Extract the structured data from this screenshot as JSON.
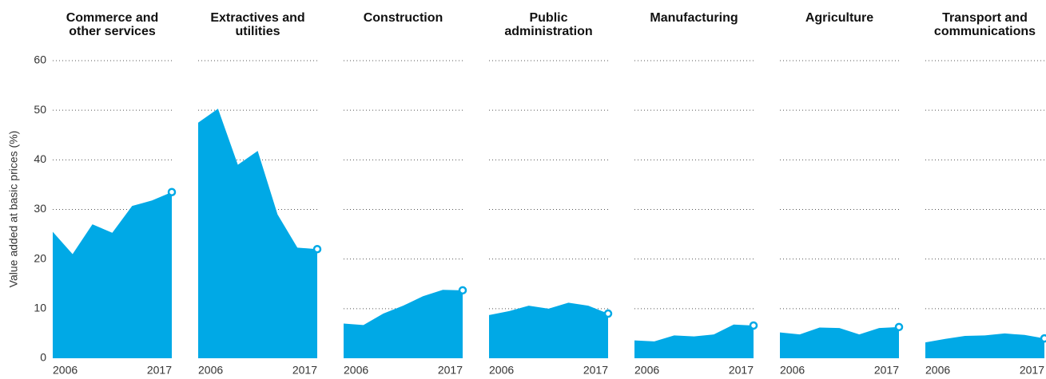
{
  "chart_data": {
    "type": "area",
    "ylabel": "Value added at basic prices (%)",
    "categories": [
      "2006",
      null,
      null,
      null,
      null,
      null,
      "2017"
    ],
    "ylim": [
      0,
      60
    ],
    "yticks": [
      0,
      10,
      20,
      30,
      40,
      50,
      60
    ],
    "grid": true,
    "series": [
      {
        "name": "Commerce and other services",
        "color": "#00a9e6",
        "values": [
          25.5,
          21,
          27,
          25.3,
          30.7,
          31.8,
          33.5
        ]
      },
      {
        "name": "Extractives and utilities",
        "color": "#00a9e6",
        "values": [
          47.5,
          50.3,
          39,
          41.8,
          29,
          22.3,
          22
        ]
      },
      {
        "name": "Construction",
        "color": "#00a9e6",
        "values": [
          7,
          6.7,
          9,
          10.6,
          12.5,
          13.8,
          13.7
        ]
      },
      {
        "name": "Public administration",
        "color": "#00a9e6",
        "values": [
          8.7,
          9.5,
          10.6,
          10,
          11.2,
          10.6,
          9
        ]
      },
      {
        "name": "Manufacturing",
        "color": "#00a9e6",
        "values": [
          3.6,
          3.4,
          4.6,
          4.4,
          4.8,
          6.8,
          6.6
        ]
      },
      {
        "name": "Agriculture",
        "color": "#00a9e6",
        "values": [
          5.2,
          4.8,
          6.2,
          6.1,
          4.8,
          6.1,
          6.3
        ]
      },
      {
        "name": "Transport and communications",
        "color": "#00a9e6",
        "values": [
          3.2,
          3.9,
          4.5,
          4.6,
          5,
          4.7,
          4
        ]
      }
    ]
  }
}
